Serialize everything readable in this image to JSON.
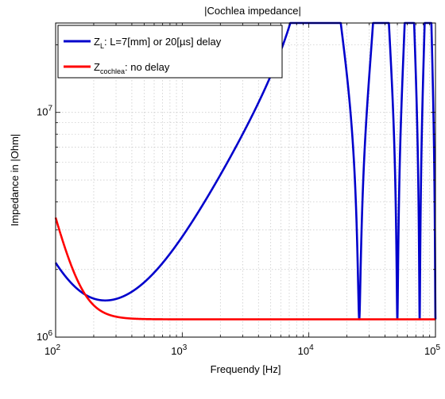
{
  "chart_data": {
    "type": "line",
    "title": "|Cochlea impedance|",
    "xlabel": "Frequendy [Hz]",
    "ylabel": "Impedance in |Ohm|",
    "xscale": "log",
    "yscale": "log",
    "xlim": [
      100,
      100000
    ],
    "ylim": [
      1000000,
      25000000
    ],
    "grid": true,
    "legend_position": "top-left",
    "xticks": [
      {
        "value": 100,
        "base": "10",
        "exp": "2"
      },
      {
        "value": 1000,
        "base": "10",
        "exp": "3"
      },
      {
        "value": 10000,
        "base": "10",
        "exp": "4"
      },
      {
        "value": 100000,
        "base": "10",
        "exp": "5"
      }
    ],
    "yticks": [
      {
        "value": 1000000,
        "base": "10",
        "exp": "6"
      },
      {
        "value": 10000000,
        "base": "10",
        "exp": "7"
      }
    ],
    "series": [
      {
        "name_main": "Z",
        "name_sub": "L",
        "name_rest": ": L=7[mm] or 20[µs] delay",
        "color": "#0000cc",
        "model": "delay",
        "params": {
          "r_min": 1200000,
          "z0": 20000000,
          "delay_s": 2e-05,
          "low_k": 700000000.0,
          "low_exp": 1.3
        }
      },
      {
        "name_main": "Z",
        "name_sub": "cochlea",
        "name_rest": ": no delay",
        "color": "#ff0000",
        "model": "nodelay",
        "params": {
          "r_min": 1200000,
          "low_k": 80000000000.0,
          "low_exp": 2.2
        }
      }
    ]
  }
}
